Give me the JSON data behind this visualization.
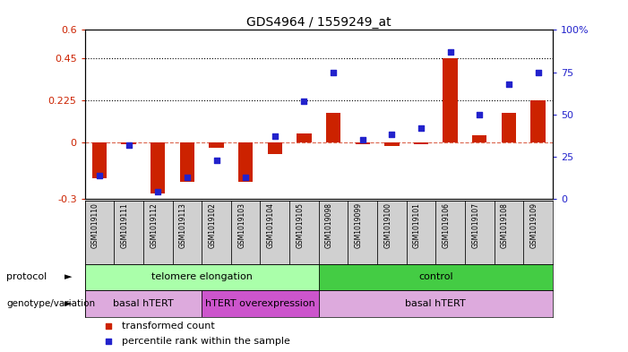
{
  "title": "GDS4964 / 1559249_at",
  "samples": [
    "GSM1019110",
    "GSM1019111",
    "GSM1019112",
    "GSM1019113",
    "GSM1019102",
    "GSM1019103",
    "GSM1019104",
    "GSM1019105",
    "GSM1019098",
    "GSM1019099",
    "GSM1019100",
    "GSM1019101",
    "GSM1019106",
    "GSM1019107",
    "GSM1019108",
    "GSM1019109"
  ],
  "red_values": [
    -0.19,
    -0.01,
    -0.27,
    -0.21,
    -0.03,
    -0.21,
    -0.06,
    0.05,
    0.16,
    -0.01,
    -0.02,
    -0.01,
    0.45,
    0.04,
    0.16,
    0.225
  ],
  "blue_values_pct": [
    14,
    32,
    4,
    13,
    23,
    13,
    37,
    58,
    75,
    35,
    38,
    42,
    87,
    50,
    68,
    75
  ],
  "ylim_left": [
    -0.3,
    0.6
  ],
  "ylim_right": [
    0,
    100
  ],
  "yticks_left": [
    -0.3,
    0.0,
    0.225,
    0.45,
    0.6
  ],
  "ytick_labels_left": [
    "-0.3",
    "0",
    "0.225",
    "0.45",
    "0.6"
  ],
  "yticks_right": [
    0,
    25,
    50,
    75,
    100
  ],
  "ytick_labels_right": [
    "0",
    "25",
    "50",
    "75",
    "100%"
  ],
  "hlines": [
    0.225,
    0.45
  ],
  "protocol_groups": [
    {
      "label": "telomere elongation",
      "start": 0,
      "end": 8,
      "color": "#aaffaa"
    },
    {
      "label": "control",
      "start": 8,
      "end": 16,
      "color": "#44cc44"
    }
  ],
  "genotype_groups": [
    {
      "label": "basal hTERT",
      "start": 0,
      "end": 4,
      "color": "#ddaadd"
    },
    {
      "label": "hTERT overexpression",
      "start": 4,
      "end": 8,
      "color": "#cc55cc"
    },
    {
      "label": "basal hTERT",
      "start": 8,
      "end": 16,
      "color": "#ddaadd"
    }
  ],
  "red_color": "#cc2200",
  "blue_color": "#2222cc",
  "bar_width": 0.5,
  "blue_marker_size": 25
}
